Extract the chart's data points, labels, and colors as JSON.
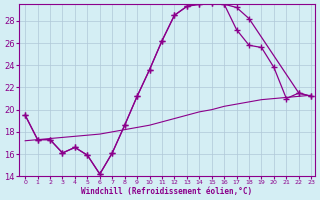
{
  "xlabel": "Windchill (Refroidissement éolien,°C)",
  "bg_color": "#d4eef4",
  "line_color": "#8b008b",
  "grid_color": "#b0c8d8",
  "x_min": 0,
  "x_max": 23,
  "y_min": 14,
  "y_max": 29.5,
  "yticks": [
    14,
    16,
    18,
    20,
    22,
    24,
    26,
    28
  ],
  "xticks": [
    0,
    1,
    2,
    3,
    4,
    5,
    6,
    7,
    8,
    9,
    10,
    11,
    12,
    13,
    14,
    15,
    16,
    17,
    18,
    19,
    20,
    21,
    22,
    23
  ],
  "curve1_x": [
    0,
    1,
    2,
    3,
    4,
    5,
    6,
    7,
    8,
    9,
    10,
    11,
    12,
    13,
    14,
    15,
    16,
    17,
    18,
    22,
    23
  ],
  "curve1_y": [
    19.5,
    17.3,
    17.3,
    16.1,
    16.6,
    15.9,
    14.2,
    16.1,
    18.6,
    21.2,
    23.6,
    26.2,
    28.5,
    29.3,
    29.5,
    29.6,
    29.5,
    29.2,
    28.2,
    21.5,
    21.2
  ],
  "curve2_x": [
    0,
    1,
    2,
    3,
    4,
    5,
    6,
    7,
    8,
    9,
    10,
    11,
    12,
    13,
    14,
    15,
    16,
    17,
    18,
    19,
    20,
    21,
    22,
    23
  ],
  "curve2_y": [
    19.5,
    17.3,
    17.3,
    16.1,
    16.6,
    15.9,
    14.2,
    16.1,
    18.6,
    21.2,
    23.6,
    26.2,
    28.5,
    29.3,
    29.5,
    29.6,
    29.5,
    27.2,
    25.8,
    25.6,
    23.8,
    21.0,
    21.5,
    21.2
  ],
  "curve3_x": [
    0,
    1,
    2,
    3,
    4,
    5,
    6,
    7,
    8,
    9,
    10,
    11,
    12,
    13,
    14,
    15,
    16,
    17,
    18,
    19,
    20,
    21,
    22,
    23
  ],
  "curve3_y": [
    17.2,
    17.3,
    17.4,
    17.5,
    17.6,
    17.7,
    17.8,
    18.0,
    18.2,
    18.4,
    18.6,
    18.9,
    19.2,
    19.5,
    19.8,
    20.0,
    20.3,
    20.5,
    20.7,
    20.9,
    21.0,
    21.1,
    21.2,
    21.3
  ]
}
